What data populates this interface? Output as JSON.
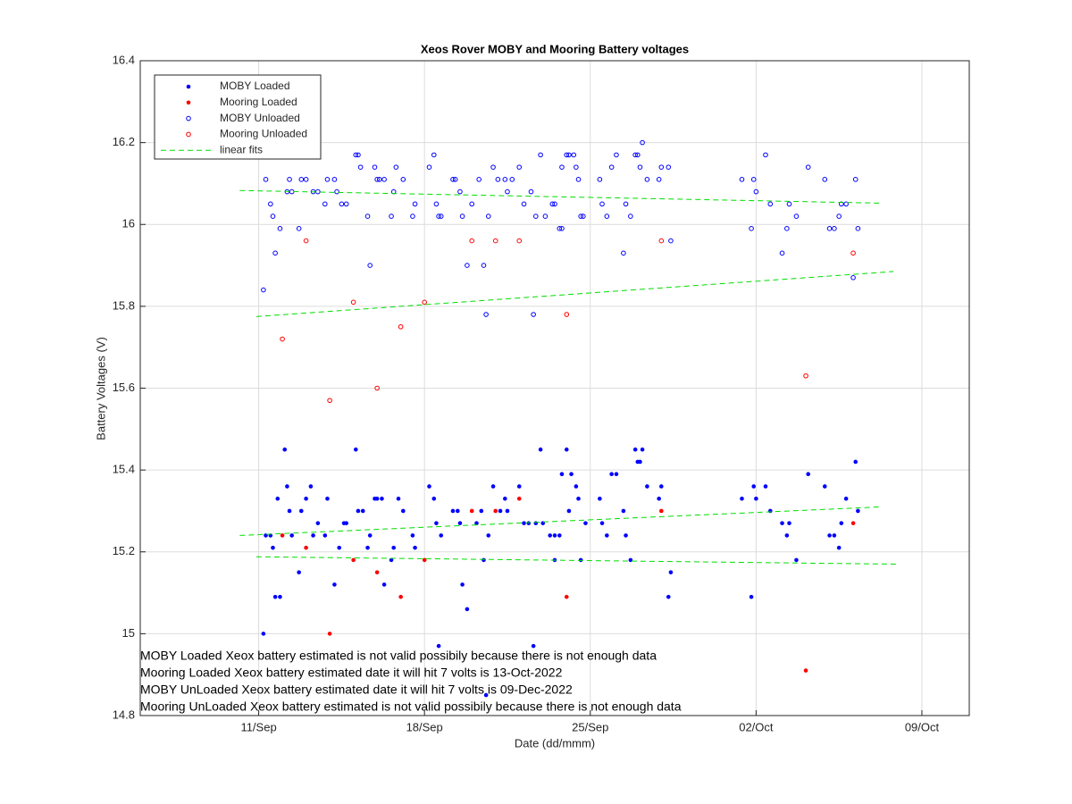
{
  "chart_data": {
    "type": "scatter",
    "title": "Xeos Rover MOBY and Mooring Battery voltages",
    "x_label": "Date (dd/mmm)",
    "y_label": "Battery Voltages (V)",
    "xlim": [
      6,
      41
    ],
    "xticks": [
      {
        "value": 11,
        "label": "11/Sep"
      },
      {
        "value": 18,
        "label": "18/Sep"
      },
      {
        "value": 25,
        "label": "25/Sep"
      },
      {
        "value": 32,
        "label": "02/Oct"
      },
      {
        "value": 39,
        "label": "09/Oct"
      }
    ],
    "ylim": [
      14.8,
      16.4
    ],
    "yticks": [
      14.8,
      15,
      15.2,
      15.4,
      15.6,
      15.8,
      16,
      16.2,
      16.4
    ],
    "grid": true,
    "legend": "top-left",
    "annotations": [
      "MOBY Loaded Xeox battery estimated is not valid possibily because there is not enough data",
      "Mooring Loaded Xeox battery estimated date it will hit 7 volts is 13-Oct-2022",
      "MOBY UnLoaded Xeox battery estimated date it will hit 7 volts is 09-Dec-2022",
      "Mooring UnLoaded Xeox battery estimated is not valid possibily because there is not enough data"
    ],
    "series": [
      {
        "name": "MOBY Loaded",
        "color": "#0000ff",
        "marker": "filled",
        "x": [
          11.2,
          11.3,
          11.5,
          11.6,
          11.7,
          11.8,
          11.9,
          12.1,
          12.2,
          12.3,
          12.4,
          12.7,
          12.8,
          13.0,
          13.2,
          13.3,
          13.5,
          13.8,
          13.9,
          14.2,
          14.4,
          14.6,
          14.7,
          15.1,
          15.2,
          15.4,
          15.6,
          15.7,
          15.9,
          16.0,
          16.2,
          16.3,
          16.6,
          16.7,
          16.9,
          17.1,
          17.5,
          17.6,
          18.2,
          18.4,
          18.5,
          18.6,
          18.7,
          19.2,
          19.4,
          19.5,
          19.6,
          19.8,
          20.2,
          20.4,
          20.5,
          20.6,
          20.7,
          20.9,
          21.2,
          21.4,
          21.5,
          22.0,
          22.2,
          22.4,
          22.6,
          22.7,
          22.9,
          23.0,
          23.3,
          23.5,
          23.5,
          23.7,
          23.8,
          24.0,
          24.1,
          24.2,
          24.4,
          24.5,
          24.6,
          24.8,
          25.4,
          25.5,
          25.7,
          25.9,
          26.1,
          26.4,
          26.5,
          26.7,
          26.9,
          27.0,
          27.1,
          27.2,
          27.4,
          27.9,
          28.0,
          28.3,
          28.4,
          31.4,
          31.8,
          31.9,
          32.0,
          32.4,
          32.6,
          33.1,
          33.3,
          33.4,
          33.7,
          34.2,
          34.9,
          35.1,
          35.3,
          35.5,
          35.6,
          35.8,
          36.2,
          36.3
        ],
        "values": [
          15.0,
          15.24,
          15.24,
          15.21,
          15.09,
          15.33,
          15.09,
          15.45,
          15.36,
          15.3,
          15.24,
          15.15,
          15.3,
          15.33,
          15.36,
          15.24,
          15.27,
          15.24,
          15.33,
          15.12,
          15.21,
          15.27,
          15.27,
          15.45,
          15.3,
          15.3,
          15.21,
          15.24,
          15.33,
          15.33,
          15.33,
          15.12,
          15.18,
          15.21,
          15.33,
          15.3,
          15.24,
          15.21,
          15.36,
          15.33,
          15.27,
          14.97,
          15.24,
          15.3,
          15.3,
          15.27,
          15.12,
          15.06,
          15.27,
          15.3,
          15.18,
          14.85,
          15.24,
          15.36,
          15.3,
          15.33,
          15.3,
          15.36,
          15.27,
          15.27,
          14.97,
          15.27,
          15.45,
          15.27,
          15.24,
          15.24,
          15.18,
          15.24,
          15.39,
          15.45,
          15.3,
          15.39,
          15.36,
          15.33,
          15.18,
          15.27,
          15.33,
          15.27,
          15.24,
          15.39,
          15.39,
          15.3,
          15.24,
          15.18,
          15.45,
          15.42,
          15.42,
          15.45,
          15.36,
          15.33,
          15.36,
          15.09,
          15.15,
          15.33,
          15.09,
          15.36,
          15.33,
          15.36,
          15.3,
          15.27,
          15.24,
          15.27,
          15.18,
          15.39,
          15.36,
          15.24,
          15.24,
          15.21,
          15.27,
          15.33,
          15.42,
          15.3
        ]
      },
      {
        "name": "Mooring Loaded",
        "color": "#ff0000",
        "marker": "filled",
        "x": [
          12.0,
          13.0,
          14.0,
          15.0,
          16.0,
          17.0,
          18.0,
          20.0,
          21.0,
          22.0,
          24.0,
          28.0,
          34.1,
          36.1
        ],
        "values": [
          15.24,
          15.21,
          15.0,
          15.18,
          15.15,
          15.09,
          15.18,
          15.3,
          15.3,
          15.33,
          15.09,
          15.3,
          14.91,
          15.27
        ]
      },
      {
        "name": "MOBY Unloaded",
        "color": "#0000ff",
        "marker": "open",
        "x": [
          11.2,
          11.3,
          11.5,
          11.6,
          11.7,
          11.9,
          12.2,
          12.3,
          12.4,
          12.7,
          12.8,
          13.0,
          13.3,
          13.5,
          13.8,
          13.9,
          14.2,
          14.3,
          14.5,
          14.7,
          15.1,
          15.2,
          15.3,
          15.6,
          15.7,
          15.9,
          16.0,
          16.1,
          16.3,
          16.6,
          16.7,
          16.8,
          17.1,
          17.5,
          17.6,
          18.2,
          18.4,
          18.5,
          18.6,
          18.7,
          19.2,
          19.3,
          19.5,
          19.6,
          19.8,
          20.0,
          20.3,
          20.5,
          20.6,
          20.7,
          20.9,
          21.1,
          21.4,
          21.5,
          21.7,
          22.0,
          22.2,
          22.5,
          22.6,
          22.7,
          22.9,
          23.1,
          23.4,
          23.5,
          23.7,
          23.8,
          23.8,
          24.0,
          24.1,
          24.3,
          24.4,
          24.5,
          24.6,
          24.7,
          25.4,
          25.5,
          25.7,
          25.9,
          26.1,
          26.4,
          26.5,
          26.7,
          26.9,
          27.0,
          27.1,
          27.2,
          27.4,
          27.9,
          28.0,
          28.3,
          28.4,
          31.4,
          31.8,
          31.9,
          32.0,
          32.4,
          32.6,
          33.1,
          33.3,
          33.4,
          33.7,
          34.2,
          34.9,
          35.1,
          35.3,
          35.5,
          35.6,
          35.8,
          36.1,
          36.2,
          36.3
        ],
        "values": [
          15.84,
          16.11,
          16.05,
          16.02,
          15.93,
          15.99,
          16.08,
          16.11,
          16.08,
          15.99,
          16.11,
          16.11,
          16.08,
          16.08,
          16.05,
          16.11,
          16.11,
          16.08,
          16.05,
          16.05,
          16.17,
          16.17,
          16.14,
          16.02,
          15.9,
          16.14,
          16.11,
          16.11,
          16.11,
          16.02,
          16.08,
          16.14,
          16.11,
          16.02,
          16.05,
          16.14,
          16.17,
          16.05,
          16.02,
          16.02,
          16.11,
          16.11,
          16.08,
          16.02,
          15.9,
          16.05,
          16.11,
          15.9,
          15.78,
          16.02,
          16.14,
          16.11,
          16.11,
          16.08,
          16.11,
          16.14,
          16.05,
          16.08,
          15.78,
          16.02,
          16.17,
          16.02,
          16.05,
          16.05,
          15.99,
          15.99,
          16.14,
          16.17,
          16.17,
          16.17,
          16.14,
          16.11,
          16.02,
          16.02,
          16.11,
          16.05,
          16.02,
          16.14,
          16.17,
          15.93,
          16.05,
          16.02,
          16.17,
          16.17,
          16.14,
          16.2,
          16.11,
          16.11,
          16.14,
          16.14,
          15.96,
          16.11,
          15.99,
          16.11,
          16.08,
          16.17,
          16.05,
          15.93,
          15.99,
          16.05,
          16.02,
          16.14,
          16.11,
          15.99,
          15.99,
          16.02,
          16.05,
          16.05,
          15.87,
          16.11,
          15.99
        ]
      },
      {
        "name": "Mooring Unloaded",
        "color": "#ff0000",
        "marker": "open",
        "x": [
          12.0,
          13.0,
          14.0,
          15.0,
          16.0,
          17.0,
          18.0,
          20.0,
          21.0,
          22.0,
          24.0,
          28.0,
          34.1,
          36.1
        ],
        "values": [
          15.72,
          15.96,
          15.57,
          15.81,
          15.6,
          15.75,
          15.81,
          15.96,
          15.96,
          15.96,
          15.78,
          15.96,
          15.63,
          15.93
        ]
      },
      {
        "name": "linear fits",
        "color": "#00dd00",
        "marker": "dashed",
        "segments": [
          {
            "x": [
              10.2,
              37.3
            ],
            "values": [
              16.083,
              16.052
            ]
          },
          {
            "x": [
              10.9,
              37.8
            ],
            "values": [
              15.775,
              15.885
            ]
          },
          {
            "x": [
              10.2,
              37.3
            ],
            "values": [
              15.24,
              15.31
            ]
          },
          {
            "x": [
              10.9,
              37.9
            ],
            "values": [
              15.188,
              15.17
            ]
          }
        ]
      }
    ]
  }
}
